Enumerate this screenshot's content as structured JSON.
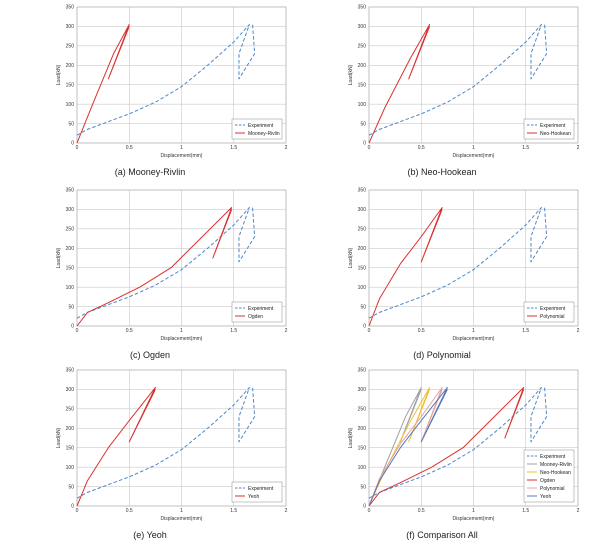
{
  "chart_data": [
    {
      "type": "line",
      "caption": "(a) Mooney-Rivlin",
      "xlabel": "Displacement(mm)",
      "ylabel": "Load(kN)",
      "xlim": [
        0,
        2
      ],
      "ylim": [
        0,
        350
      ],
      "xticks": [
        0,
        0.5,
        1,
        1.5,
        2
      ],
      "xtick_labels": [
        "0",
        "0.5",
        "1",
        "1.5",
        "2"
      ],
      "yticks": [
        0,
        50,
        100,
        150,
        200,
        250,
        300,
        350
      ],
      "grid": true,
      "legend_position": "bottom-right",
      "series": [
        {
          "name": "Experiment",
          "color": "#4a86c8",
          "dash": true,
          "x": [
            0,
            0.1,
            0.25,
            0.5,
            0.75,
            1.0,
            1.25,
            1.5,
            1.65,
            1.55,
            1.55,
            1.7,
            1.68
          ],
          "y": [
            20,
            35,
            50,
            75,
            105,
            145,
            200,
            260,
            305,
            230,
            165,
            230,
            305
          ]
        },
        {
          "name": "Mooney-Rivlin",
          "color": "#d93030",
          "dash": false,
          "x": [
            0,
            0.15,
            0.35,
            0.5,
            0.3,
            0.5
          ],
          "y": [
            0,
            100,
            230,
            305,
            165,
            300
          ]
        }
      ]
    },
    {
      "type": "line",
      "caption": "(b) Neo-Hookean",
      "xlabel": "Displacement(mm)",
      "ylabel": "Load(kN)",
      "xlim": [
        0,
        2
      ],
      "ylim": [
        0,
        350
      ],
      "xticks": [
        0,
        0.5,
        1,
        1.5,
        2
      ],
      "xtick_labels": [
        "0",
        "0.5",
        "1",
        "1.5",
        "2"
      ],
      "yticks": [
        0,
        50,
        100,
        150,
        200,
        250,
        300,
        350
      ],
      "grid": true,
      "legend_position": "bottom-right",
      "series": [
        {
          "name": "Experiment",
          "color": "#4a86c8",
          "dash": true,
          "x": [
            0,
            0.1,
            0.25,
            0.5,
            0.75,
            1.0,
            1.25,
            1.5,
            1.65,
            1.55,
            1.55,
            1.7,
            1.68
          ],
          "y": [
            20,
            35,
            50,
            75,
            105,
            145,
            200,
            260,
            305,
            230,
            165,
            230,
            305
          ]
        },
        {
          "name": "Neo-Hookean",
          "color": "#d93030",
          "dash": false,
          "x": [
            0,
            0.15,
            0.4,
            0.58,
            0.38,
            0.58
          ],
          "y": [
            0,
            90,
            220,
            305,
            165,
            300
          ]
        }
      ]
    },
    {
      "type": "line",
      "caption": "(c) Ogden",
      "xlabel": "Displacement(mm)",
      "ylabel": "Load(kN)",
      "xlim": [
        0,
        2
      ],
      "ylim": [
        0,
        350
      ],
      "xticks": [
        0,
        0.5,
        1,
        1.5,
        2
      ],
      "xtick_labels": [
        "0",
        "0.5",
        "1",
        "1.5",
        "2"
      ],
      "yticks": [
        0,
        50,
        100,
        150,
        200,
        250,
        300,
        350
      ],
      "grid": true,
      "legend_position": "bottom-right",
      "series": [
        {
          "name": "Experiment",
          "color": "#4a86c8",
          "dash": true,
          "x": [
            0,
            0.1,
            0.25,
            0.5,
            0.75,
            1.0,
            1.25,
            1.5,
            1.65,
            1.55,
            1.55,
            1.7,
            1.68
          ],
          "y": [
            20,
            35,
            50,
            75,
            105,
            145,
            200,
            260,
            305,
            230,
            165,
            230,
            305
          ]
        },
        {
          "name": "Ogden",
          "color": "#d93030",
          "dash": false,
          "x": [
            0,
            0.1,
            0.3,
            0.6,
            0.9,
            1.2,
            1.48,
            1.3,
            1.48
          ],
          "y": [
            0,
            35,
            60,
            100,
            150,
            230,
            305,
            175,
            300
          ]
        }
      ]
    },
    {
      "type": "line",
      "caption": "(d) Polynomial",
      "xlabel": "Displacement(mm)",
      "ylabel": "Load(kN)",
      "xlim": [
        0,
        2
      ],
      "ylim": [
        0,
        350
      ],
      "xticks": [
        0,
        0.5,
        1,
        1.5,
        2
      ],
      "xtick_labels": [
        "0",
        "0.5",
        "1",
        "1.5",
        "2"
      ],
      "yticks": [
        0,
        50,
        100,
        150,
        200,
        250,
        300,
        350
      ],
      "grid": true,
      "legend_position": "bottom-right",
      "series": [
        {
          "name": "Experiment",
          "color": "#4a86c8",
          "dash": true,
          "x": [
            0,
            0.1,
            0.25,
            0.5,
            0.75,
            1.0,
            1.25,
            1.5,
            1.65,
            1.55,
            1.55,
            1.7,
            1.68
          ],
          "y": [
            20,
            35,
            50,
            75,
            105,
            145,
            200,
            260,
            305,
            230,
            165,
            230,
            305
          ]
        },
        {
          "name": "Polynomial",
          "color": "#d93030",
          "dash": false,
          "x": [
            0,
            0.1,
            0.3,
            0.5,
            0.7,
            0.5,
            0.7
          ],
          "y": [
            0,
            70,
            160,
            230,
            305,
            165,
            300
          ]
        }
      ]
    },
    {
      "type": "line",
      "caption": "(e) Yeoh",
      "xlabel": "Displacement(mm)",
      "ylabel": "Load(kN)",
      "xlim": [
        0,
        2
      ],
      "ylim": [
        0,
        350
      ],
      "xticks": [
        0,
        0.5,
        1,
        1.5,
        2
      ],
      "xtick_labels": [
        "0",
        "0.5",
        "1",
        "1.5",
        "2"
      ],
      "yticks": [
        0,
        50,
        100,
        150,
        200,
        250,
        300,
        350
      ],
      "grid": true,
      "legend_position": "bottom-right",
      "series": [
        {
          "name": "Experiment",
          "color": "#4a86c8",
          "dash": true,
          "x": [
            0,
            0.1,
            0.25,
            0.5,
            0.75,
            1.0,
            1.25,
            1.5,
            1.65,
            1.55,
            1.55,
            1.7,
            1.68
          ],
          "y": [
            20,
            35,
            50,
            75,
            105,
            145,
            200,
            260,
            305,
            230,
            165,
            230,
            305
          ]
        },
        {
          "name": "Yeoh",
          "color": "#d93030",
          "dash": false,
          "x": [
            0,
            0.1,
            0.3,
            0.5,
            0.75,
            0.5,
            0.75
          ],
          "y": [
            0,
            65,
            150,
            220,
            305,
            165,
            300
          ]
        }
      ]
    },
    {
      "type": "line",
      "caption": "(f) Comparison All",
      "xlabel": "Displacement(mm)",
      "ylabel": "Load(kN)",
      "xlim": [
        0,
        2
      ],
      "ylim": [
        0,
        350
      ],
      "xticks": [
        0,
        0.5,
        1,
        1.5,
        2
      ],
      "xtick_labels": [
        "0",
        "0.5",
        "1",
        "1.5",
        "2"
      ],
      "yticks": [
        0,
        50,
        100,
        150,
        200,
        250,
        300,
        350
      ],
      "grid": true,
      "legend_position": "bottom-right",
      "series": [
        {
          "name": "Experiment",
          "color": "#4a86c8",
          "dash": true,
          "x": [
            0,
            0.1,
            0.25,
            0.5,
            0.75,
            1.0,
            1.25,
            1.5,
            1.65,
            1.55,
            1.55,
            1.7,
            1.68
          ],
          "y": [
            20,
            35,
            50,
            75,
            105,
            145,
            200,
            260,
            305,
            230,
            165,
            230,
            305
          ]
        },
        {
          "name": "Mooney-Rivlin",
          "color": "#a0a0a0",
          "dash": false,
          "x": [
            0,
            0.15,
            0.35,
            0.5,
            0.3,
            0.5
          ],
          "y": [
            0,
            100,
            230,
            305,
            165,
            300
          ]
        },
        {
          "name": "Neo-Hookean",
          "color": "#f2c033",
          "dash": false,
          "x": [
            0,
            0.15,
            0.4,
            0.58,
            0.38,
            0.58
          ],
          "y": [
            0,
            90,
            220,
            305,
            165,
            300
          ]
        },
        {
          "name": "Ogden",
          "color": "#d93030",
          "dash": false,
          "x": [
            0,
            0.1,
            0.3,
            0.6,
            0.9,
            1.2,
            1.48,
            1.3,
            1.48
          ],
          "y": [
            0,
            35,
            60,
            100,
            150,
            230,
            305,
            175,
            300
          ]
        },
        {
          "name": "Polynomial",
          "color": "#e8a0a0",
          "dash": false,
          "x": [
            0,
            0.1,
            0.3,
            0.5,
            0.7,
            0.5,
            0.7
          ],
          "y": [
            0,
            70,
            160,
            230,
            305,
            165,
            300
          ]
        },
        {
          "name": "Yeoh",
          "color": "#5878b8",
          "dash": false,
          "x": [
            0,
            0.1,
            0.3,
            0.5,
            0.75,
            0.5,
            0.75
          ],
          "y": [
            0,
            65,
            150,
            220,
            305,
            165,
            300
          ]
        }
      ]
    }
  ]
}
